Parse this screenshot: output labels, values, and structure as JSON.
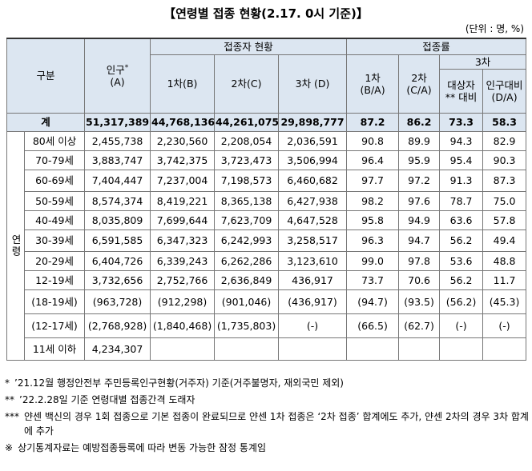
{
  "title": "【연령별 접종 현황(2.17. 0시 기준)】",
  "unit": "(단위 : 명, %)",
  "table": {
    "header": {
      "group": "구분",
      "population": "인구",
      "population_mark": "*",
      "population_sub": "(A)",
      "vaccinated": "접종자 현황",
      "rate": "접종률",
      "dose1": "1차(B)",
      "dose2": "2차(C)",
      "dose3": "3차 (D)",
      "rate1": "1차\n(B/A)",
      "rate2": "2차\n(C/A)",
      "rate3": "3차",
      "rate3_target": "대상자\n** 대비",
      "rate3_population": "인구대비\n(D/A)"
    },
    "total": [
      "계",
      "51,317,389",
      "44,768,136",
      "44,261,075",
      "29,898,777",
      "87.2",
      "86.2",
      "73.3",
      "58.3"
    ],
    "age_label": "연령",
    "rows": [
      [
        "80세 이상",
        "2,455,738",
        "2,230,560",
        "2,208,054",
        "2,036,591",
        "90.8",
        "89.9",
        "94.3",
        "82.9"
      ],
      [
        "70-79세",
        "3,883,747",
        "3,742,375",
        "3,723,473",
        "3,506,994",
        "96.4",
        "95.9",
        "95.4",
        "90.3"
      ],
      [
        "60-69세",
        "7,404,447",
        "7,237,004",
        "7,198,573",
        "6,460,682",
        "97.7",
        "97.2",
        "91.3",
        "87.3"
      ],
      [
        "50-59세",
        "8,574,374",
        "8,419,221",
        "8,365,138",
        "6,427,938",
        "98.2",
        "97.6",
        "78.7",
        "75.0"
      ],
      [
        "40-49세",
        "8,035,809",
        "7,699,644",
        "7,623,709",
        "4,647,528",
        "95.8",
        "94.9",
        "63.6",
        "57.8"
      ],
      [
        "30-39세",
        "6,591,585",
        "6,347,323",
        "6,242,993",
        "3,258,517",
        "96.3",
        "94.7",
        "56.2",
        "49.4"
      ],
      [
        "20-29세",
        "6,404,726",
        "6,339,243",
        "6,262,286",
        "3,123,610",
        "99.0",
        "97.8",
        "53.6",
        "48.8"
      ],
      [
        "12-19세",
        "3,732,656",
        "2,752,766",
        "2,636,849",
        "436,917",
        "73.7",
        "70.6",
        "56.2",
        "11.7"
      ],
      [
        "(18-19세)",
        "(963,728)",
        "(912,298)",
        "(901,046)",
        "(436,917)",
        "(94.7)",
        "(93.5)",
        "(56.2)",
        "(45.3)"
      ],
      [
        "(12-17세)",
        "(2,768,928)",
        "(1,840,468)",
        "(1,735,803)",
        "(-)",
        "(66.5)",
        "(62.7)",
        "(-)",
        "(-)"
      ],
      [
        "11세 이하",
        "4,234,307"
      ]
    ]
  },
  "notes": [
    {
      "marker": "*",
      "text": "’21.12월 행정안전부 주민등록인구현황(거주자) 기준(거주불명자, 재외국민 제외)"
    },
    {
      "marker": "**",
      "text": "’22.2.28일 기준 연령대별 접종간격 도래자"
    },
    {
      "marker": "***",
      "text": "얀센 백신의 경우 1회 접종으로 기본 접종이 완료되므로 얀센 1차 접종은 ‘2차 접종’ 합계에도 추가, 얀센 2차의 경우 3차 합계에 추가"
    },
    {
      "marker": "※",
      "text": "상기통계자료는 예방접종등록에 따라 변동 가능한 잠정 통계임"
    }
  ]
}
